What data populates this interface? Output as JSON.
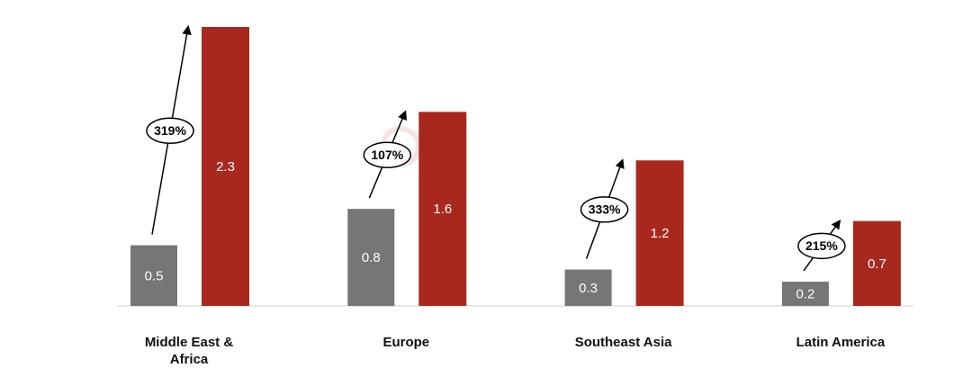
{
  "chart_data": {
    "type": "bar",
    "categories": [
      "Middle East & Africa",
      "Europe",
      "Southeast Asia",
      "Latin America"
    ],
    "series": [
      {
        "color": "#767676",
        "values": [
          0.5,
          0.8,
          0.3,
          0.2
        ]
      },
      {
        "color": "#a8281e",
        "values": [
          2.3,
          1.6,
          1.2,
          0.7
        ]
      }
    ],
    "annotations": [
      "319%",
      "107%",
      "333%",
      "215%"
    ],
    "watermark": "Counterpoint"
  }
}
